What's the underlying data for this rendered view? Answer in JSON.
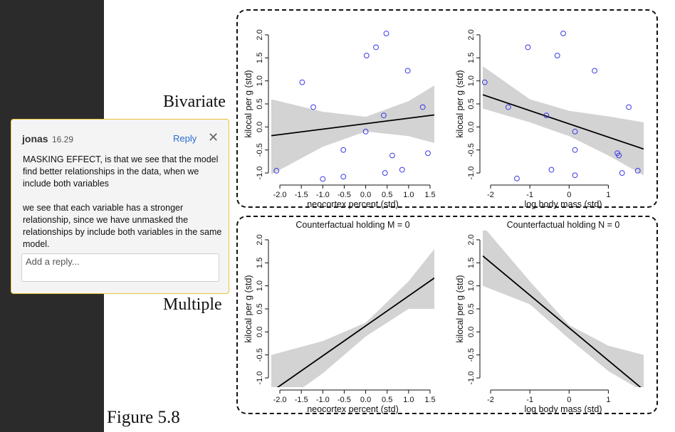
{
  "labels": {
    "bivariate": "Bivariate",
    "multiple": "Multiple",
    "figure_caption": "Figure 5.8"
  },
  "comment": {
    "author": "jonas",
    "time": "16.29",
    "reply_label": "Reply",
    "close_glyph": "✕",
    "paragraph_1": "MASKING EFFECT, is that we see that the model find better relationships in the data, when we include both variables",
    "paragraph_2": "we see that each variable has a stronger relationship, since we have unmasked the relationships by include both variables in the same model.",
    "reply_placeholder": "Add a reply..."
  },
  "colors": {
    "point": "#3a3ae6",
    "band": "#d3d3d3",
    "line": "#000000"
  },
  "chart_data": [
    {
      "type": "scatter",
      "title": "",
      "xlabel": "neocortex percent (std)",
      "ylabel": "kilocal per g (std)",
      "xlim": [
        -2.2,
        1.6
      ],
      "ylim": [
        -1.2,
        2.2
      ],
      "xticks": [
        -2.0,
        -1.5,
        -1.0,
        -0.5,
        0.0,
        0.5,
        1.0,
        1.5
      ],
      "yticks": [
        -1.0,
        -0.5,
        0.0,
        0.5,
        1.0,
        1.5,
        2.0
      ],
      "xtick_labels": [
        "-2.0",
        "-1.5",
        "-1.0",
        "-0.5",
        "0.0",
        "0.5",
        "1.0",
        "1.5"
      ],
      "ytick_labels": [
        "-1.0",
        "-0.5",
        "0.0",
        "0.5",
        "1.0",
        "1.5",
        "2.0"
      ],
      "points": [
        {
          "x": -2.08,
          "y": -0.95
        },
        {
          "x": -1.48,
          "y": 0.97
        },
        {
          "x": -1.22,
          "y": 0.43
        },
        {
          "x": -1.0,
          "y": -1.13
        },
        {
          "x": -0.52,
          "y": -1.08
        },
        {
          "x": -0.52,
          "y": -0.5
        },
        {
          "x": 0.0,
          "y": -0.1
        },
        {
          "x": 0.02,
          "y": 1.55
        },
        {
          "x": 0.24,
          "y": 1.73
        },
        {
          "x": 0.42,
          "y": 0.25
        },
        {
          "x": 0.45,
          "y": -1.0
        },
        {
          "x": 0.48,
          "y": 2.03
        },
        {
          "x": 0.62,
          "y": -0.62
        },
        {
          "x": 0.85,
          "y": -0.93
        },
        {
          "x": 0.98,
          "y": 1.22
        },
        {
          "x": 1.33,
          "y": 0.43
        },
        {
          "x": 1.45,
          "y": -0.57
        }
      ],
      "fit": {
        "x": [
          -2.2,
          1.6
        ],
        "y": [
          -0.19,
          0.26
        ]
      },
      "band": {
        "x": [
          -2.2,
          -1.0,
          0.0,
          1.0,
          1.6
        ],
        "lower": [
          -1.03,
          -0.43,
          -0.1,
          -0.2,
          -0.35
        ],
        "upper": [
          0.6,
          0.33,
          0.22,
          0.56,
          0.9
        ]
      }
    },
    {
      "type": "scatter",
      "title": "",
      "xlabel": "log body mass (std)",
      "ylabel": "kilocal per g (std)",
      "xlim": [
        -2.2,
        1.9
      ],
      "ylim": [
        -1.2,
        2.2
      ],
      "xticks": [
        -2,
        -1,
        0,
        1
      ],
      "yticks": [
        -1.0,
        -0.5,
        0.0,
        0.5,
        1.0,
        1.5,
        2.0
      ],
      "xtick_labels": [
        "-2",
        "-1",
        "0",
        "1"
      ],
      "ytick_labels": [
        "-1.0",
        "-0.5",
        "0.0",
        "0.5",
        "1.0",
        "1.5",
        "2.0"
      ],
      "points": [
        {
          "x": -2.15,
          "y": 0.97
        },
        {
          "x": -1.55,
          "y": 0.43
        },
        {
          "x": -1.33,
          "y": -1.12
        },
        {
          "x": -1.05,
          "y": 1.73
        },
        {
          "x": -0.58,
          "y": 0.25
        },
        {
          "x": -0.45,
          "y": -0.93
        },
        {
          "x": -0.3,
          "y": 1.55
        },
        {
          "x": -0.15,
          "y": 2.03
        },
        {
          "x": 0.15,
          "y": -0.1
        },
        {
          "x": 0.15,
          "y": -0.5
        },
        {
          "x": 0.15,
          "y": -1.05
        },
        {
          "x": 0.65,
          "y": 1.22
        },
        {
          "x": 1.23,
          "y": -0.57
        },
        {
          "x": 1.27,
          "y": -0.62
        },
        {
          "x": 1.35,
          "y": -1.0
        },
        {
          "x": 1.52,
          "y": 0.43
        },
        {
          "x": 1.75,
          "y": -0.95
        }
      ],
      "fit": {
        "x": [
          -2.2,
          1.9
        ],
        "y": [
          0.7,
          -0.48
        ]
      },
      "band": {
        "x": [
          -2.2,
          -1.0,
          0.0,
          1.0,
          1.9
        ],
        "lower": [
          0.4,
          0.1,
          -0.2,
          -0.62,
          -1.05
        ],
        "upper": [
          1.32,
          0.6,
          0.35,
          0.23,
          0.1
        ]
      }
    },
    {
      "type": "line",
      "title": "Counterfactual holding M = 0",
      "xlabel": "neocortex percent (std)",
      "ylabel": "kilocal per g (std)",
      "xlim": [
        -2.2,
        1.6
      ],
      "ylim": [
        -1.2,
        2.2
      ],
      "xticks": [
        -2.0,
        -1.5,
        -1.0,
        -0.5,
        0.0,
        0.5,
        1.0,
        1.5
      ],
      "yticks": [
        -1.0,
        -0.5,
        0.0,
        0.5,
        1.0,
        1.5,
        2.0
      ],
      "xtick_labels": [
        "-2.0",
        "-1.5",
        "-1.0",
        "-0.5",
        "0.0",
        "0.5",
        "1.0",
        "1.5"
      ],
      "ytick_labels": [
        "-1.0",
        "-0.5",
        "0.0",
        "0.5",
        "1.0",
        "1.5",
        "2.0"
      ],
      "points": [],
      "fit": {
        "x": [
          -2.2,
          1.6
        ],
        "y": [
          -1.3,
          1.17
        ]
      },
      "band": {
        "x": [
          -2.2,
          -1.0,
          0.0,
          1.0,
          1.6
        ],
        "lower": [
          -1.7,
          -0.9,
          -0.1,
          0.5,
          0.5
        ],
        "upper": [
          -0.5,
          -0.2,
          0.2,
          1.1,
          1.8
        ]
      }
    },
    {
      "type": "line",
      "title": "Counterfactual holding N = 0",
      "xlabel": "log body mass (std)",
      "ylabel": "kilocal per g (std)",
      "xlim": [
        -2.2,
        1.9
      ],
      "ylim": [
        -1.2,
        2.2
      ],
      "xticks": [
        -2,
        -1,
        0,
        1
      ],
      "yticks": [
        -1.0,
        -0.5,
        0.0,
        0.5,
        1.0,
        1.5,
        2.0
      ],
      "xtick_labels": [
        "-2",
        "-1",
        "0",
        "1"
      ],
      "ytick_labels": [
        "-1.0",
        "-0.5",
        "0.0",
        "0.5",
        "1.0",
        "1.5",
        "2.0"
      ],
      "points": [],
      "fit": {
        "x": [
          -2.2,
          1.9
        ],
        "y": [
          1.65,
          -1.26
        ]
      },
      "band": {
        "x": [
          -2.2,
          -1.0,
          0.0,
          1.0,
          1.9
        ],
        "lower": [
          1.0,
          0.6,
          -0.15,
          -0.85,
          -1.3
        ],
        "upper": [
          2.3,
          1.1,
          0.15,
          -0.3,
          -0.5
        ]
      }
    }
  ]
}
